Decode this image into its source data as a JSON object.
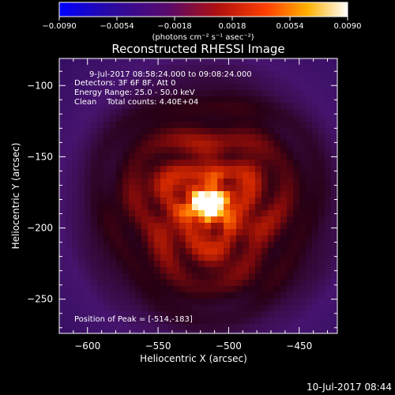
{
  "chart_data": {
    "type": "heatmap",
    "title": "Reconstructed RHESSI Image",
    "xlabel": "Heliocentric X (arcsec)",
    "ylabel": "Heliocentric Y (arcsec)",
    "xlim": [
      -620,
      -423
    ],
    "ylim": [
      -274,
      -81
    ],
    "xticks": [
      -600,
      -550,
      -500,
      -450
    ],
    "yticks": [
      -100,
      -150,
      -200,
      -250
    ],
    "colorbar": {
      "label": "(photons cm⁻² s⁻¹ asec⁻²)",
      "range": [
        -0.009,
        0.009
      ],
      "ticks": [
        "-0.0090",
        "-0.0054",
        "-0.0018",
        "0.0018",
        "0.0054",
        "0.0090"
      ],
      "colormap": "blue-purple-red-yellow-white"
    },
    "annotations": [
      "9-Jul-2017 08:58:24.000 to 09:08:24.000",
      "Detectors: 3F 6F 8F, Att 0",
      "Energy Range: 25.0 - 50.0 keV",
      "Clean    Total counts: 4.40E+04"
    ],
    "peak_label": "Position of Peak = [-514,-183]",
    "peak": {
      "x": -514,
      "y": -183,
      "value": 0.009
    }
  },
  "timestamp": "10-Jul-2017 08:44"
}
